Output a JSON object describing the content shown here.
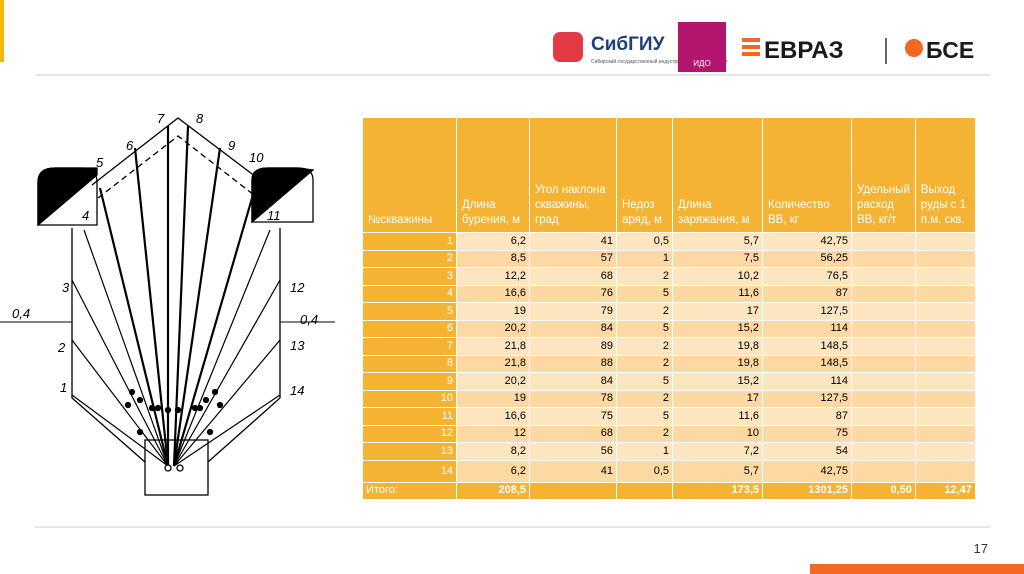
{
  "header": {
    "logo_sibgiu": "СибГИУ",
    "logo_sibgiu_caption": "Сибирский государственный индустриальный университет",
    "logo_ido": "ИДО",
    "logo_evraz": "ЕВРАЗ",
    "logo_bse": "БСЕ"
  },
  "diagram": {
    "hole_labels": [
      "1",
      "2",
      "3",
      "4",
      "5",
      "6",
      "7",
      "8",
      "9",
      "10",
      "11",
      "12",
      "13",
      "14"
    ],
    "gap_left": "0,4",
    "gap_right": "0,4"
  },
  "table": {
    "columns": [
      "№скважины",
      "Длина бурения, м",
      "Угол наклона скважины, град",
      "Недоз аряд, м",
      "Длина заряжания, м",
      "Количество ВВ, кг",
      "Удельный расход ВВ, кг/т",
      "Выход руды с 1 п.м. скв."
    ],
    "rows": [
      [
        "1",
        "6,2",
        "41",
        "0,5",
        "5,7",
        "42,75"
      ],
      [
        "2",
        "8,5",
        "57",
        "1",
        "7,5",
        "56,25"
      ],
      [
        "3",
        "12,2",
        "68",
        "2",
        "10,2",
        "76,5"
      ],
      [
        "4",
        "16,6",
        "76",
        "5",
        "11,6",
        "87"
      ],
      [
        "5",
        "19",
        "79",
        "2",
        "17",
        "127,5"
      ],
      [
        "6",
        "20,2",
        "84",
        "5",
        "15,2",
        "114"
      ],
      [
        "7",
        "21,8",
        "89",
        "2",
        "19,8",
        "148,5"
      ],
      [
        "8",
        "21,8",
        "88",
        "2",
        "19,8",
        "148,5"
      ],
      [
        "9",
        "20,2",
        "84",
        "5",
        "15,2",
        "114"
      ],
      [
        "10",
        "19",
        "78",
        "2",
        "17",
        "127,5"
      ],
      [
        "11",
        "16,6",
        "75",
        "5",
        "11,6",
        "87"
      ],
      [
        "12",
        "12",
        "68",
        "2",
        "10",
        "75"
      ],
      [
        "13",
        "8,2",
        "56",
        "1",
        "7,2",
        "54"
      ],
      [
        "14",
        "6,2",
        "41",
        "0,5",
        "5,7",
        "42,75"
      ]
    ],
    "total": {
      "label": "Итого:",
      "drilling_length": "208,5",
      "charge_length": "173,5",
      "explosive_amount": "1301,25",
      "specific_consumption": "0,50",
      "ore_yield": "12,47"
    }
  },
  "footer": {
    "page_number": "17"
  }
}
